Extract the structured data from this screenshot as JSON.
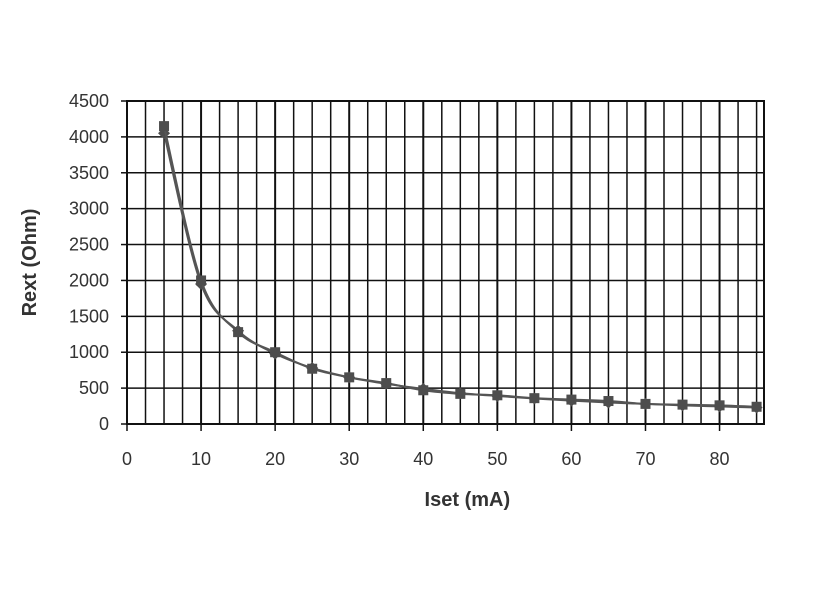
{
  "chart_data": {
    "type": "line",
    "title": "",
    "xlabel": "Iset (mA)",
    "ylabel": "Rext (Ohm)",
    "xlim": [
      0,
      86
    ],
    "ylim": [
      0,
      4500
    ],
    "x_ticks": [
      0,
      10,
      20,
      30,
      40,
      50,
      60,
      70,
      80
    ],
    "y_ticks": [
      0,
      500,
      1000,
      1500,
      2000,
      2500,
      3000,
      3500,
      4000,
      4500
    ],
    "grid": true,
    "legend": "none",
    "colors": {
      "background": "#ffffff",
      "grid": "#111111",
      "series_line": "#555555",
      "markers": "#4d4d4d",
      "text": "#333333"
    },
    "series": [
      {
        "marker": "diamond",
        "x": [
          5,
          10,
          15,
          20,
          25,
          30,
          35,
          40,
          45,
          50,
          55,
          60,
          65,
          70,
          75,
          80,
          85
        ],
        "y": [
          4050,
          1950,
          1300,
          980,
          780,
          650,
          560,
          490,
          430,
          390,
          355,
          325,
          300,
          280,
          260,
          245,
          230
        ]
      },
      {
        "marker": "square",
        "x": [
          5,
          10,
          15,
          20,
          25,
          30,
          35,
          40,
          45,
          50,
          55,
          60,
          65,
          70,
          75,
          80,
          85
        ],
        "y": [
          4150,
          2000,
          1280,
          1000,
          770,
          650,
          570,
          470,
          420,
          400,
          360,
          340,
          320,
          280,
          270,
          260,
          240
        ]
      }
    ]
  }
}
